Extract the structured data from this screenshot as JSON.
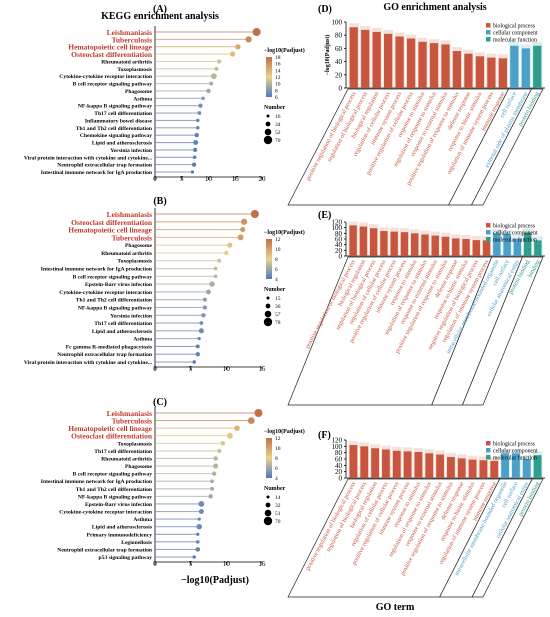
{
  "figure": {
    "kegg_title": "KEGG enrichment analysis",
    "go_title": "GO enrichment analysis",
    "go_xlabel": "GO term",
    "kegg_xlabel": "−log10(Padjust)",
    "colors": {
      "highlight_text": "#c0392b",
      "bp": "#c8563e",
      "cc": "#4aa0c8",
      "mf": "#2f9e8f",
      "high": "#c0704a",
      "mid": "#e8d48a",
      "low": "#4f78c0"
    }
  },
  "chart_data": [
    {
      "panel": "(A)",
      "type": "lollipop",
      "terms": [
        "Leishmaniasis",
        "Tuberculosis",
        "Hematopoietic cell lineage",
        "Osteoclast differentiation",
        "Rheumatoid arthritis",
        "Toxoplasmosis",
        "Cytokine-cytokine receptor interaction",
        "B cell receptor signaling pathway",
        "Phagosome",
        "Asthma",
        "NF-kappa B signaling pathway",
        "Th17 cell differentiation",
        "Inflammatory bowel disease",
        "Th1 and Th2 cell differentiation",
        "Chemokine signaling pathway",
        "Lipid and atherosclerosis",
        "Yersinia infection",
        "Viral protein interaction with cytokine and cytokine...",
        "Neutrophil extracellular trap formation",
        "Intestinal immune network for IgA production"
      ],
      "highlighted": [
        0,
        1,
        2,
        3
      ],
      "values": [
        19,
        17.5,
        15.5,
        14.5,
        12,
        11.5,
        11,
        10.5,
        10,
        9,
        8.5,
        8.3,
        8,
        8,
        7.8,
        7.6,
        7.5,
        7.4,
        7.3,
        7
      ],
      "counts": [
        70,
        50,
        40,
        38,
        30,
        22,
        45,
        24,
        30,
        18,
        28,
        22,
        20,
        20,
        30,
        35,
        28,
        20,
        28,
        16
      ],
      "xlim": [
        0,
        20
      ],
      "xticks": [
        0,
        5,
        10,
        15,
        20
      ],
      "colorbar_title": "−log10(Padjust)",
      "colorbar_ticks": [
        "18",
        "16",
        "14",
        "12",
        "10",
        "8",
        "6"
      ],
      "size_title": "Number",
      "size_ticks": [
        "16",
        "34",
        "52",
        "70"
      ]
    },
    {
      "panel": "(B)",
      "type": "lollipop",
      "terms": [
        "Leishmaniasis",
        "Osteoclast differentiation",
        "Hematopoietic cell lineage",
        "Tuberculosis",
        "Phagosome",
        "Rheumatoid arthritis",
        "Toxoplasmosis",
        "Intestinal immune network for IgA production",
        "B cell receptor signaling pathway",
        "Epstein-Barr virus infection",
        "Cytokine-cytokine receptor interaction",
        "Th1 and Th2 cell differentiation",
        "NF-kappa B signaling pathway",
        "Yersinia infection",
        "Th17 cell differentiation",
        "Lipid and atherosclerosis",
        "Asthma",
        "Fc gamma R-mediated phagocytosis",
        "Neutrophil extracellular trap formation",
        "Viral protein interaction with cytokine and cytokine..."
      ],
      "highlighted": [
        0,
        1,
        2,
        3
      ],
      "values": [
        14,
        12.5,
        12.3,
        12,
        10.5,
        10,
        9,
        8.5,
        8.5,
        8,
        7.5,
        7,
        7,
        6.8,
        6.5,
        6.5,
        6.2,
        6,
        6,
        5.5
      ],
      "counts": [
        78,
        55,
        40,
        50,
        40,
        30,
        25,
        20,
        20,
        45,
        35,
        25,
        28,
        30,
        22,
        40,
        15,
        25,
        30,
        18
      ],
      "xlim": [
        0,
        15
      ],
      "xticks": [
        0,
        5,
        10,
        15
      ],
      "colorbar_title": "−log10(Padjust)",
      "colorbar_ticks": [
        "12",
        "10",
        "8",
        "6",
        "4"
      ],
      "size_title": "Number",
      "size_ticks": [
        "15",
        "36",
        "57",
        "78"
      ]
    },
    {
      "panel": "(C)",
      "type": "lollipop",
      "terms": [
        "Leishmaniasis",
        "Tuberculosis",
        "Hematopoietic cell lineage",
        "Osteoclast differentiation",
        "Toxoplasmosis",
        "Th17 cell differentiation",
        "Rheumatoid arthritis",
        "Phagosome",
        "B cell receptor signaling pathway",
        "Intestinal immune network for IgA production",
        "Th1 and Th2 cell differentiation",
        "NF-kappa B signaling pathway",
        "Epstein-Barr virus infection",
        "Cytokine-cytokine receptor interaction",
        "Asthma",
        "Lipid and atherosclerosis",
        "Primary immunodeficiency",
        "Legionellosis",
        "Neutrophil extracellular trap formation",
        "p53 signaling pathway"
      ],
      "highlighted": [
        0,
        1,
        2,
        3
      ],
      "values": [
        14.5,
        13.5,
        11.5,
        10.5,
        9.5,
        9,
        8.5,
        8.5,
        8.3,
        8,
        8,
        7.8,
        6.5,
        6.5,
        6.2,
        6.2,
        6,
        6,
        6,
        5.5
      ],
      "counts": [
        70,
        55,
        40,
        45,
        30,
        25,
        28,
        35,
        25,
        20,
        22,
        28,
        45,
        35,
        14,
        40,
        16,
        18,
        30,
        16
      ],
      "xlim": [
        0,
        15
      ],
      "xticks": [
        0,
        5,
        10,
        15
      ],
      "colorbar_title": "−log10(Padjust)",
      "colorbar_ticks": [
        "12",
        "10",
        "8",
        "6",
        "4"
      ],
      "size_title": "Number",
      "size_ticks": [
        "14",
        "32",
        "51",
        "70"
      ]
    },
    {
      "panel": "(D)",
      "type": "bar",
      "ylabel": "−log10(Padjust)",
      "ylim": [
        0,
        100
      ],
      "yticks": [
        0,
        20,
        40,
        60,
        80,
        100
      ],
      "legend": [
        "biological process",
        "cellular component",
        "molecular function"
      ],
      "categories": [
        "positive regulation of biological process",
        "regulation of biological process",
        "biological regulation",
        "regulation of cellular process",
        "immune system process",
        "positive regulation of cellular process",
        "response to stimulus",
        "regulation of response to stimulus",
        "response to external stimulus",
        "positive regulation of response to stimulus",
        "defense response",
        "response to biotic stimulus",
        "regulation of immune system process",
        "immune response",
        "cell surface",
        "external side of plasma membrane",
        "protein binding"
      ],
      "groups": [
        "bp",
        "bp",
        "bp",
        "bp",
        "bp",
        "bp",
        "bp",
        "bp",
        "bp",
        "bp",
        "bp",
        "bp",
        "bp",
        "bp",
        "cc",
        "cc",
        "mf"
      ],
      "values": [
        92,
        88,
        85,
        82,
        78,
        75,
        70,
        68,
        66,
        56,
        52,
        48,
        46,
        45,
        64,
        60,
        64
      ]
    },
    {
      "panel": "(E)",
      "type": "bar",
      "ylabel": "",
      "ylim": [
        0,
        120
      ],
      "yticks": [
        0,
        20,
        40,
        60,
        80,
        100,
        120
      ],
      "legend": [
        "biological process",
        "cellular component",
        "molecular function"
      ],
      "categories": [
        "positive regulation of biological process",
        "biological regulation",
        "regulation of biological process",
        "regulation of cellular process",
        "positive regulation of cellular process",
        "immune system process",
        "response to stimulus",
        "regulation of response to stimulus",
        "response to external stimulus",
        "positive regulation of response to stimulus",
        "defense response",
        "response to biotic stimulus",
        "negative regulation of biological process",
        "regulation of immune system process",
        "intracellular membrane-bounded organelle",
        "cell surface",
        "cellular anatomical entity",
        "protein binding",
        "binding"
      ],
      "groups": [
        "bp",
        "bp",
        "bp",
        "bp",
        "bp",
        "bp",
        "bp",
        "bp",
        "bp",
        "bp",
        "bp",
        "bp",
        "bp",
        "bp",
        "cc",
        "cc",
        "cc",
        "mf",
        "mf"
      ],
      "values": [
        108,
        104,
        98,
        88,
        86,
        84,
        80,
        76,
        72,
        68,
        62,
        60,
        56,
        55,
        80,
        78,
        60,
        82,
        55
      ]
    },
    {
      "panel": "(F)",
      "type": "bar",
      "ylabel": "",
      "ylim": [
        0,
        120
      ],
      "yticks": [
        0,
        20,
        40,
        60,
        80,
        100,
        120
      ],
      "legend": [
        "biological process",
        "cellular component",
        "molecular function"
      ],
      "categories": [
        "positive regulation of biological process",
        "regulation of biological process",
        "biological regulation",
        "regulation of cellular process",
        "positive regulation of cellular process",
        "immune system process",
        "response to stimulus",
        "regulation of response to stimulus",
        "response to external stimulus",
        "positive regulation of response to stimulus",
        "defense response",
        "response to biotic stimulus",
        "regulation of immune system process",
        "immune response",
        "intracellular membrane-bounded organelle",
        "cell surface",
        "cellular anatomical entity",
        "protein binding"
      ],
      "groups": [
        "bp",
        "bp",
        "bp",
        "bp",
        "bp",
        "bp",
        "bp",
        "bp",
        "bp",
        "bp",
        "bp",
        "bp",
        "bp",
        "bp",
        "cc",
        "cc",
        "cc",
        "mf"
      ],
      "values": [
        104,
        100,
        94,
        90,
        86,
        84,
        82,
        78,
        74,
        66,
        62,
        58,
        56,
        54,
        78,
        78,
        60,
        72
      ]
    }
  ]
}
